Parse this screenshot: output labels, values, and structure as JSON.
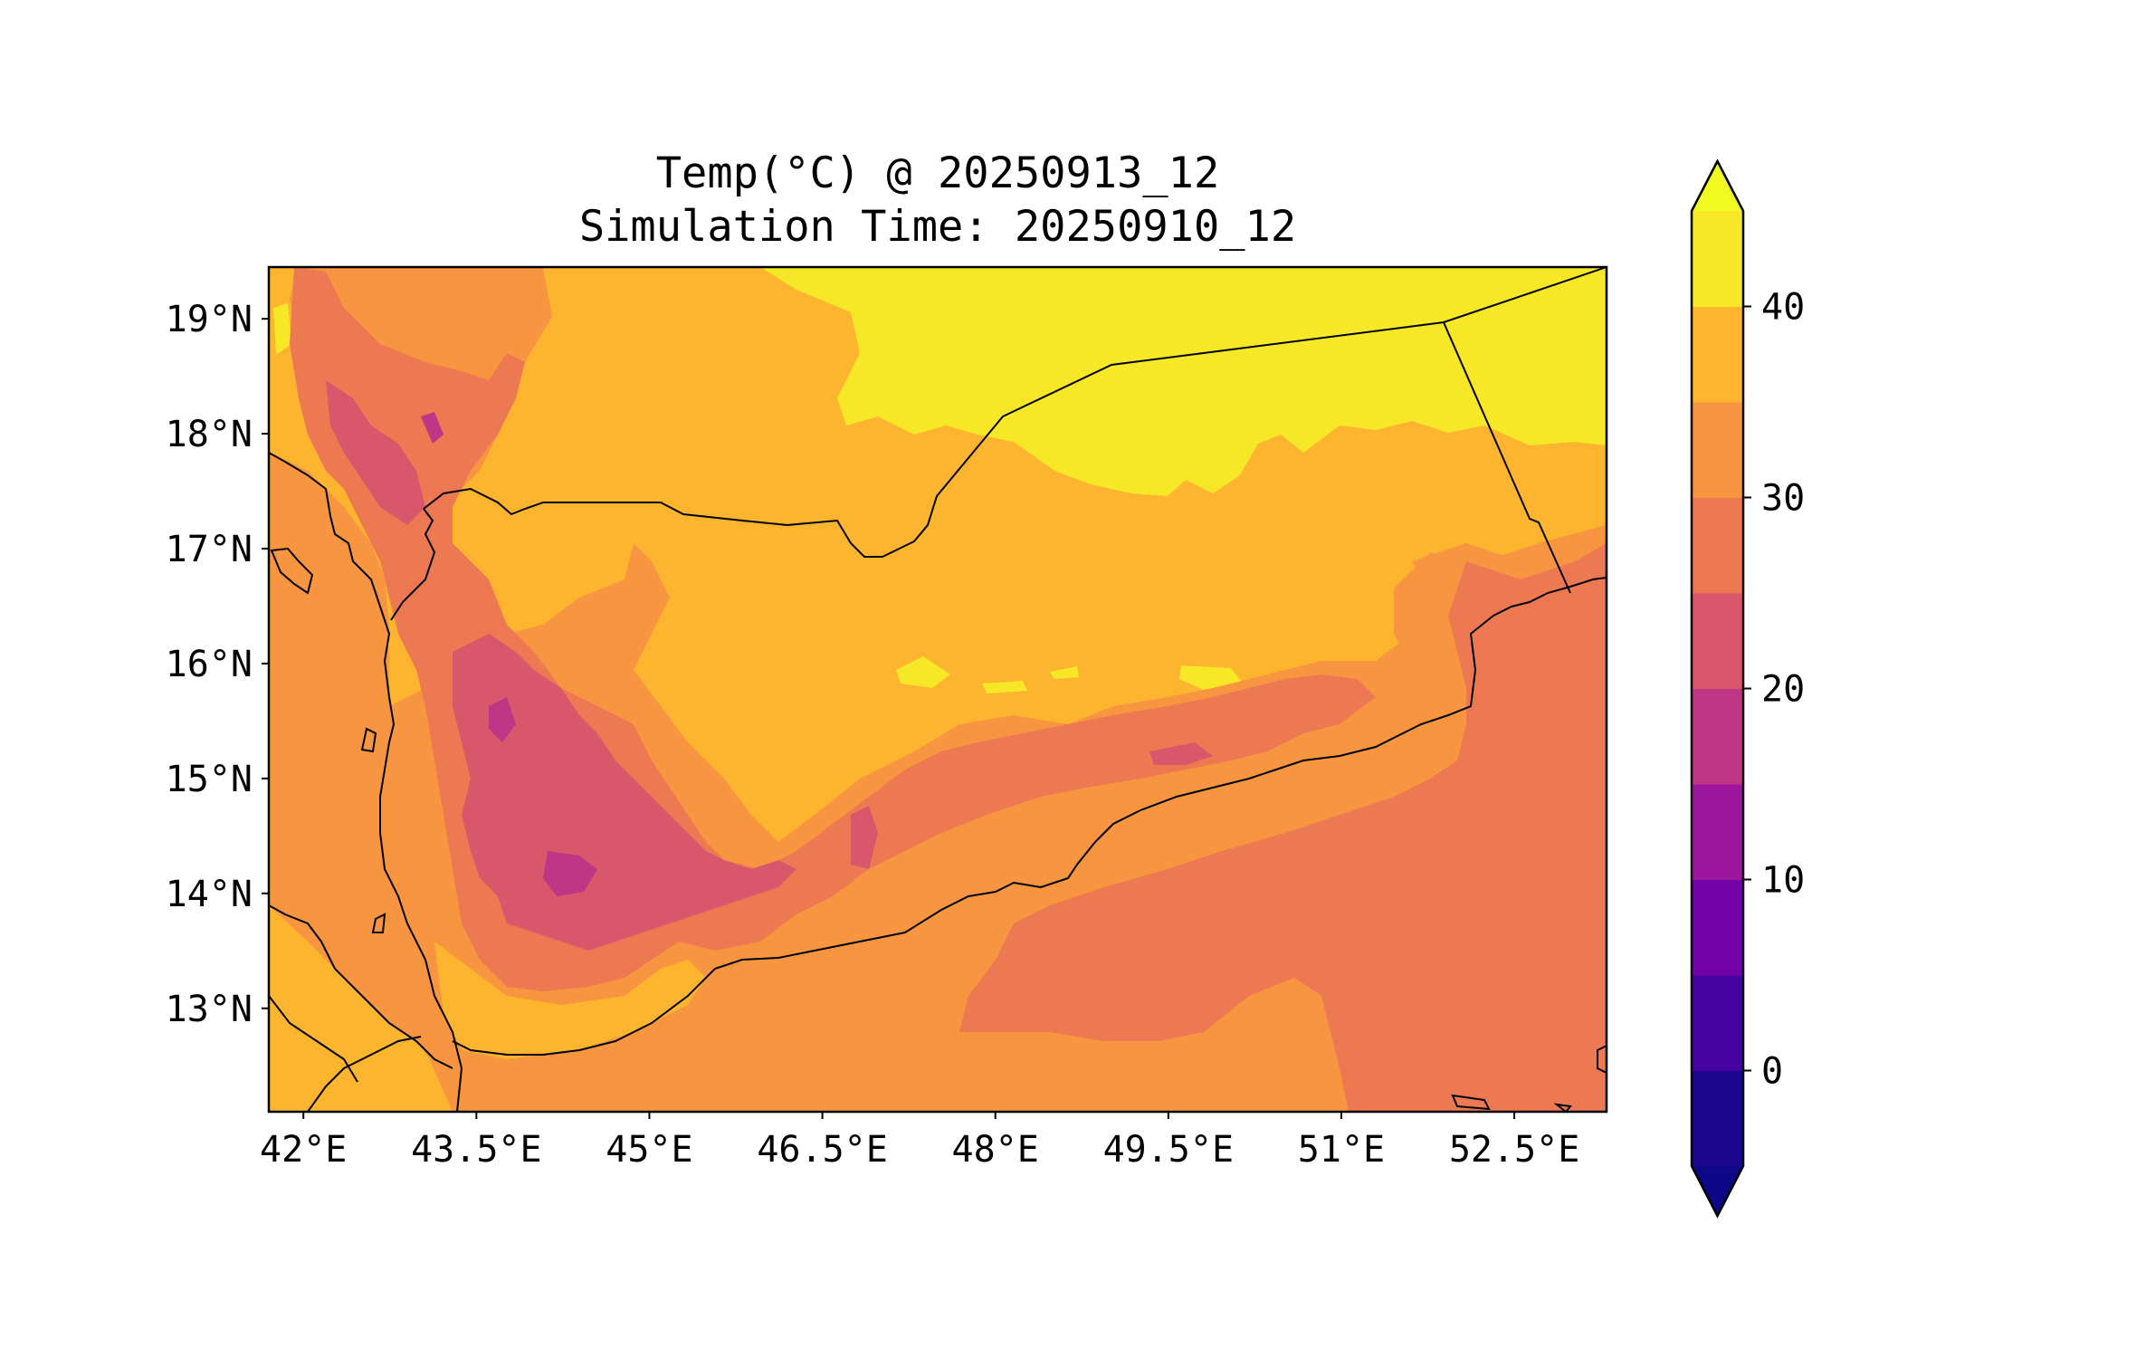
{
  "title": {
    "line1": "Temp(°C) @ 20250913_12",
    "line2": "Simulation Time: 20250910_12"
  },
  "map": {
    "lon_range": [
      41.7,
      53.3
    ],
    "lat_range": [
      12.1,
      19.45
    ],
    "lon_ticks": [
      {
        "value": 42.0,
        "label": "42°E"
      },
      {
        "value": 43.5,
        "label": "43.5°E"
      },
      {
        "value": 45.0,
        "label": "45°E"
      },
      {
        "value": 46.5,
        "label": "46.5°E"
      },
      {
        "value": 48.0,
        "label": "48°E"
      },
      {
        "value": 49.5,
        "label": "49.5°E"
      },
      {
        "value": 51.0,
        "label": "51°E"
      },
      {
        "value": 52.5,
        "label": "52.5°E"
      }
    ],
    "lat_ticks": [
      {
        "value": 19,
        "label": "19°N"
      },
      {
        "value": 18,
        "label": "18°N"
      },
      {
        "value": 17,
        "label": "17°N"
      },
      {
        "value": 16,
        "label": "16°N"
      },
      {
        "value": 15,
        "label": "15°N"
      },
      {
        "value": 14,
        "label": "14°N"
      },
      {
        "value": 13,
        "label": "13°N"
      }
    ]
  },
  "colorbar": {
    "levels": [
      -5,
      0,
      5,
      10,
      15,
      20,
      25,
      30,
      35,
      40,
      45
    ],
    "colors": [
      "#1b068d",
      "#47039f",
      "#7301a8",
      "#9c179e",
      "#bd3786",
      "#d8576b",
      "#ed7953",
      "#f89540",
      "#fdb42f",
      "#f6e826"
    ],
    "under_color": "#0d0887",
    "over_color": "#f0f921",
    "ticks": [
      {
        "value": 0,
        "label": "0"
      },
      {
        "value": 10,
        "label": "10"
      },
      {
        "value": 20,
        "label": "20"
      },
      {
        "value": 30,
        "label": "30"
      },
      {
        "value": 40,
        "label": "40"
      }
    ]
  }
}
